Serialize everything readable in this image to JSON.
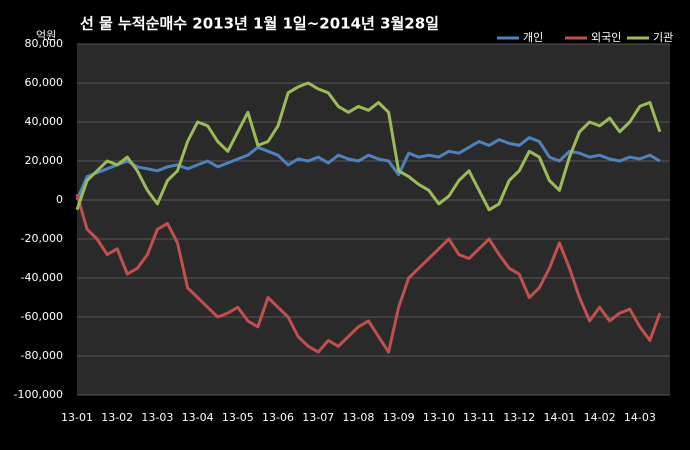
{
  "chart_data": {
    "type": "line",
    "title": "선 물 누적순매수 2013년 1월 1일~2014년 3월28일",
    "y_unit": "억원",
    "categories": [
      "13-01",
      null,
      null,
      null,
      "13-02",
      null,
      null,
      null,
      "13-03",
      null,
      null,
      null,
      "13-04",
      null,
      null,
      null,
      "13-05",
      null,
      null,
      null,
      "13-06",
      null,
      null,
      null,
      "13-07",
      null,
      null,
      null,
      "13-08",
      null,
      null,
      null,
      "13-09",
      null,
      null,
      null,
      "13-10",
      null,
      null,
      null,
      "13-11",
      null,
      null,
      null,
      "13-12",
      null,
      null,
      null,
      "14-01",
      null,
      null,
      null,
      "14-02",
      null,
      null,
      null,
      "14-03",
      null,
      null
    ],
    "series": [
      {
        "name": "개인",
        "color": "#4f81bd",
        "values": [
          0,
          12000,
          14000,
          16000,
          18000,
          20000,
          17000,
          16000,
          15000,
          17000,
          18000,
          16000,
          18000,
          20000,
          17000,
          19000,
          21000,
          23000,
          27000,
          25000,
          23000,
          18000,
          21000,
          20000,
          22000,
          19000,
          23000,
          21000,
          20000,
          23000,
          21000,
          20000,
          13000,
          24000,
          22000,
          23000,
          22000,
          25000,
          24000,
          27000,
          30000,
          28000,
          31000,
          29000,
          28000,
          32000,
          30000,
          22000,
          20000,
          25000,
          24000,
          22000,
          23000,
          21000,
          20000,
          22000,
          21000,
          23000,
          20000
        ]
      },
      {
        "name": "외국인",
        "color": "#c0504d",
        "values": [
          3000,
          -15000,
          -20000,
          -28000,
          -25000,
          -38000,
          -35000,
          -28000,
          -15000,
          -12000,
          -22000,
          -45000,
          -50000,
          -55000,
          -60000,
          -58000,
          -55000,
          -62000,
          -65000,
          -50000,
          -55000,
          -60000,
          -70000,
          -75000,
          -78000,
          -72000,
          -75000,
          -70000,
          -65000,
          -62000,
          -70000,
          -78000,
          -55000,
          -40000,
          -35000,
          -30000,
          -25000,
          -20000,
          -28000,
          -30000,
          -25000,
          -20000,
          -28000,
          -35000,
          -38000,
          -50000,
          -45000,
          -35000,
          -22000,
          -35000,
          -50000,
          -62000,
          -55000,
          -62000,
          -58000,
          -56000,
          -65000,
          -72000,
          -58000
        ]
      },
      {
        "name": "기관",
        "color": "#9bbb59",
        "values": [
          -5000,
          10000,
          15000,
          20000,
          18000,
          22000,
          15000,
          5000,
          -2000,
          10000,
          15000,
          30000,
          40000,
          38000,
          30000,
          25000,
          35000,
          45000,
          28000,
          30000,
          38000,
          55000,
          58000,
          60000,
          57000,
          55000,
          48000,
          45000,
          48000,
          46000,
          50000,
          45000,
          15000,
          12000,
          8000,
          5000,
          -2000,
          2000,
          10000,
          15000,
          5000,
          -5000,
          -2000,
          10000,
          15000,
          25000,
          22000,
          10000,
          5000,
          22000,
          35000,
          40000,
          38000,
          42000,
          35000,
          40000,
          48000,
          50000,
          35000
        ]
      }
    ],
    "ylim": [
      -100000,
      80000
    ],
    "yticks": [
      {
        "value": -100000,
        "label": "-100,000"
      },
      {
        "value": -80000,
        "label": "-80,000"
      },
      {
        "value": -60000,
        "label": "-60,000"
      },
      {
        "value": -40000,
        "label": "-40,000"
      },
      {
        "value": -20000,
        "label": "-20,000"
      },
      0,
      {
        "value": 20000,
        "label": "20,000"
      },
      {
        "value": 40000,
        "label": "40,000"
      },
      {
        "value": 60000,
        "label": "60,000"
      },
      {
        "value": 80000,
        "label": "80,000"
      }
    ],
    "grid": true,
    "legend": "top-right"
  }
}
